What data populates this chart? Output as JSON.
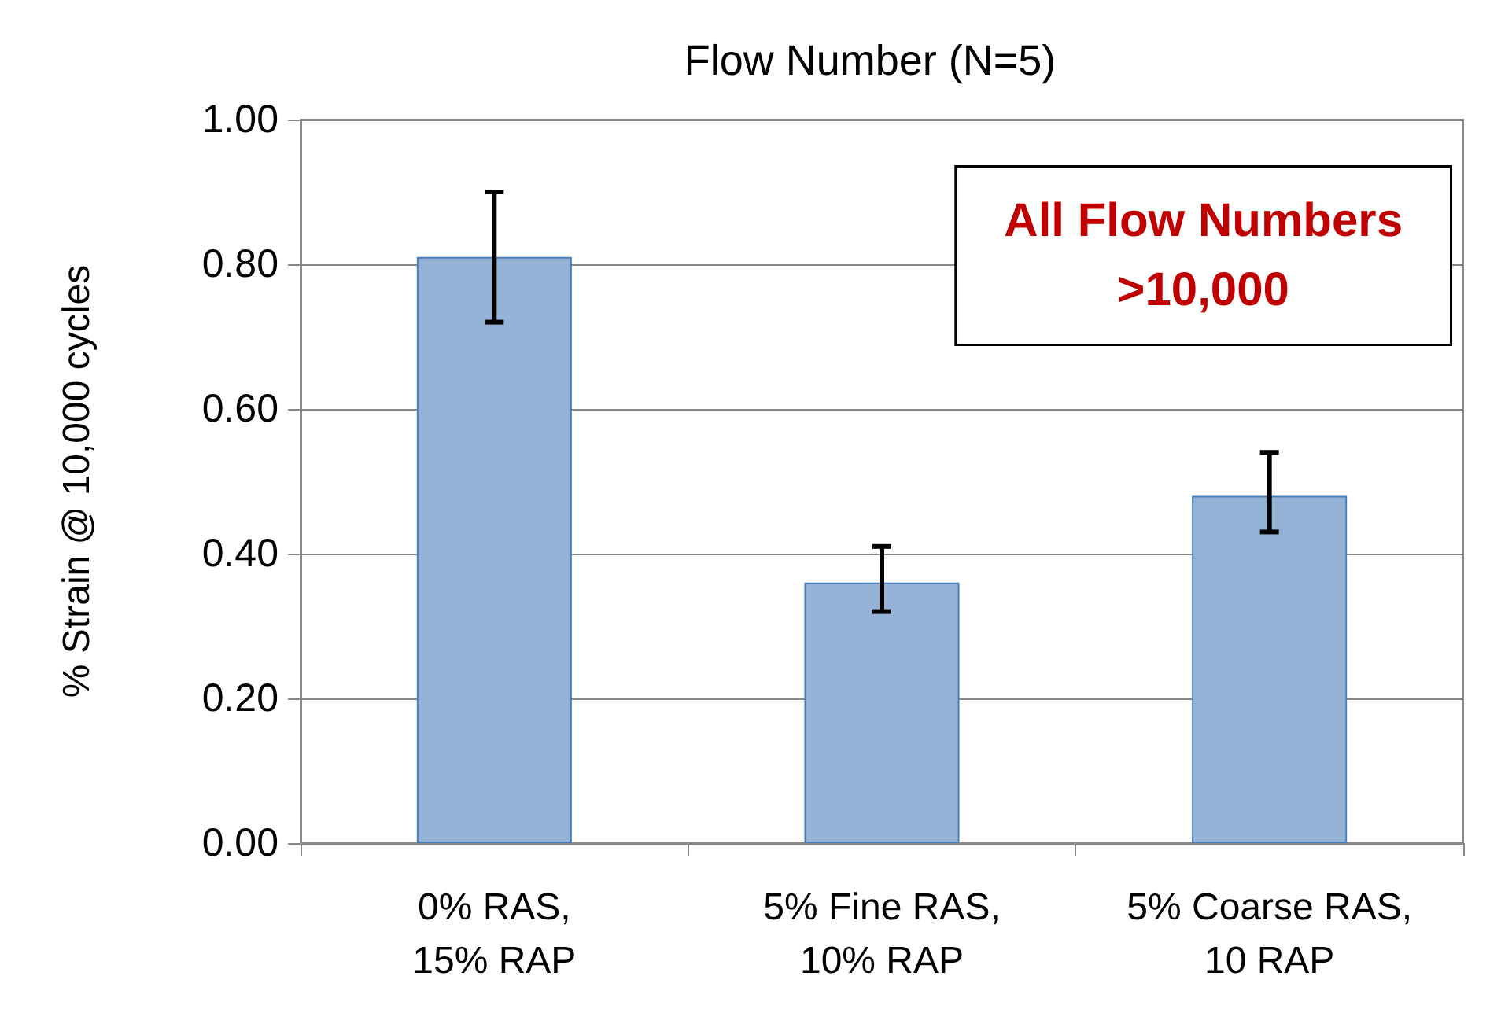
{
  "chart_data": {
    "type": "bar",
    "title": "Flow Number (N=5)",
    "ylabel": "% Strain @ 10,000 cycles",
    "categories": [
      "0% RAS,\n15% RAP",
      "5% Fine RAS,\n10% RAP",
      "5% Coarse RAS,\n10 RAP"
    ],
    "values": [
      0.81,
      0.36,
      0.48
    ],
    "color": "#95b3d7",
    "errors": [
      [
        0.72,
        0.9
      ],
      [
        0.32,
        0.41
      ],
      [
        0.43,
        0.54
      ]
    ],
    "ylim": [
      0,
      1
    ],
    "yticks": [
      {
        "value": 0,
        "label": "0.00"
      },
      {
        "value": 0.2,
        "label": "0.20"
      },
      {
        "value": 0.4,
        "label": "0.40"
      },
      {
        "value": 0.6,
        "label": "0.60"
      },
      {
        "value": 0.8,
        "label": "0.80"
      },
      {
        "value": 1,
        "label": "1.00"
      }
    ],
    "grid": "y",
    "annotations": [
      "All Flow Numbers\n>10,000"
    ]
  }
}
